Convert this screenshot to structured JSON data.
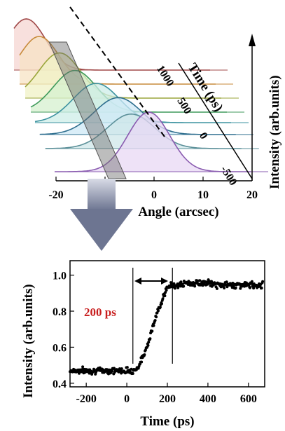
{
  "chart_data": [
    {
      "type": "line",
      "description_axes": "3D waterfall",
      "xlabel": "Angle (arcsec)",
      "ylabel": "Intensity (arb.units)",
      "zlabel": "Time (ps)",
      "x_ticks": [
        "-20",
        "-10",
        "0",
        "10",
        "20"
      ],
      "time_ticks": [
        "1000",
        "500",
        "0",
        "-500"
      ],
      "xlim": [
        -20,
        20
      ],
      "series": [
        {
          "time": -450,
          "center": -0.8,
          "width": 4.3,
          "peak": 1.0,
          "color": "#8a5cb0",
          "fill": "#e8d8f4"
        },
        {
          "time": -120,
          "center": -2.5,
          "width": 4.8,
          "peak": 0.58,
          "color": "#5a8f98",
          "fill": "#cfe7ea"
        },
        {
          "time": 80,
          "center": -4.0,
          "width": 4.9,
          "peak": 0.62,
          "color": "#2f6f8f",
          "fill": "#cde8f6"
        },
        {
          "time": 250,
          "center": -7.5,
          "width": 4.7,
          "peak": 0.66,
          "color": "#3d93a0",
          "fill": "#cdeee8"
        },
        {
          "time": 400,
          "center": -11.0,
          "width": 4.4,
          "peak": 0.7,
          "color": "#3f9a5b",
          "fill": "#d5f0cf"
        },
        {
          "time": 600,
          "center": -13.0,
          "width": 4.2,
          "peak": 0.76,
          "color": "#9aa53a",
          "fill": "#f0f1c5"
        },
        {
          "time": 800,
          "center": -16.0,
          "width": 4.0,
          "peak": 0.8,
          "color": "#c78a3a",
          "fill": "#f7e3c4"
        },
        {
          "time": 1000,
          "center": -17.5,
          "width": 3.9,
          "peak": 0.86,
          "color": "#a04848",
          "fill": "#f6d6d2"
        }
      ]
    },
    {
      "type": "scatter",
      "xlabel": "Time (ps)",
      "ylabel": "Intensity (arb.units)",
      "xlim": [
        -280,
        680
      ],
      "ylim": [
        0.38,
        1.08
      ],
      "x_ticks": [
        "-200",
        "0",
        "200",
        "400",
        "600"
      ],
      "y_ticks": [
        "0.4",
        "0.6",
        "0.8",
        "1.0"
      ],
      "annotation": "200 ps",
      "annotation_color": "#c81e1e",
      "vlines": [
        30,
        225
      ],
      "model": {
        "baseline": 0.47,
        "top": 0.945,
        "rise_start": 30,
        "rise_end": 225,
        "noise": 0.012
      },
      "x_start": -280,
      "x_end": 670,
      "x_step": 5
    }
  ]
}
